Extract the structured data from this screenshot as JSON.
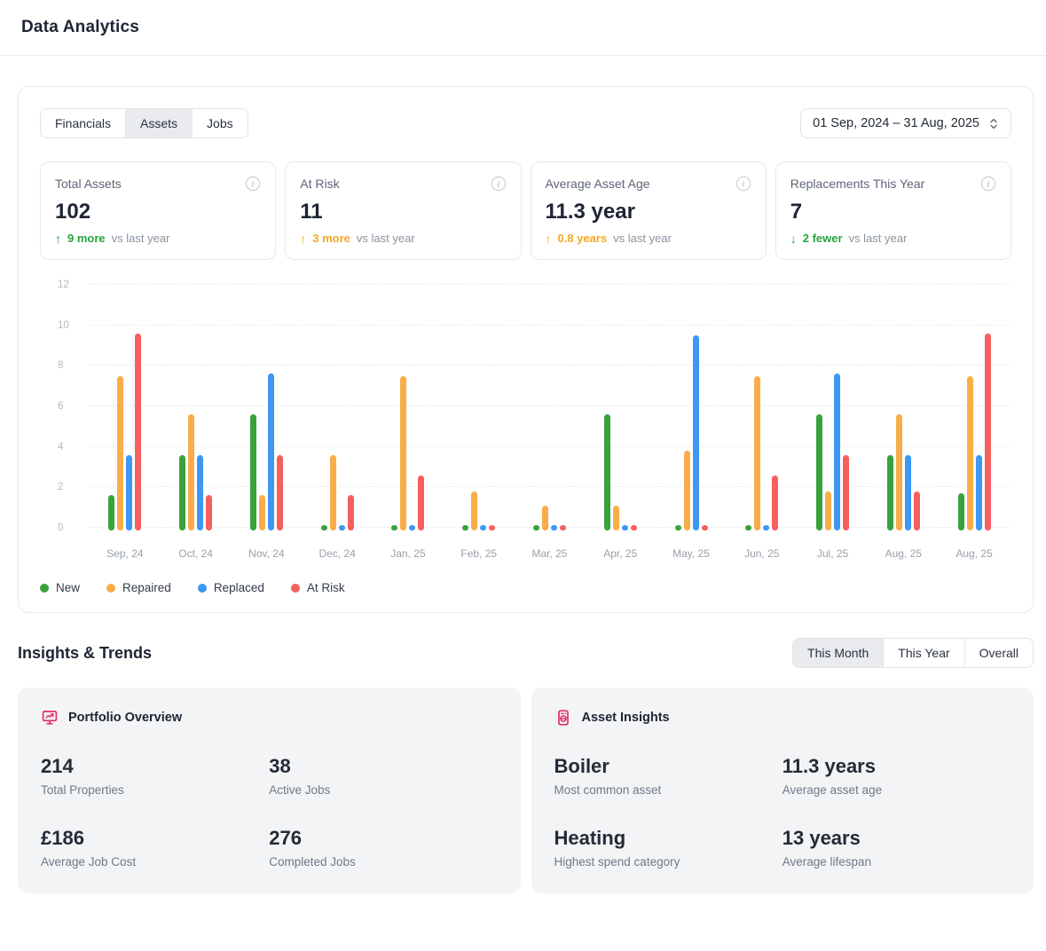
{
  "header": {
    "title": "Data Analytics"
  },
  "analytics_panel": {
    "tabs": [
      {
        "label": "Financials",
        "active": false
      },
      {
        "label": "Assets",
        "active": true
      },
      {
        "label": "Jobs",
        "active": false
      }
    ],
    "date_range": "01 Sep, 2024 – 31 Aug, 2025",
    "kpis": [
      {
        "title": "Total Assets",
        "value": "102",
        "delta_direction": "up",
        "delta_value": "9 more",
        "delta_suffix": "vs last year",
        "delta_color": "#23a43d"
      },
      {
        "title": "At Risk",
        "value": "11",
        "delta_direction": "up",
        "delta_value": "3 more",
        "delta_suffix": "vs last year",
        "delta_color": "#f6a723"
      },
      {
        "title": "Average Asset Age",
        "value": "11.3 year",
        "delta_direction": "up",
        "delta_value": "0.8 years",
        "delta_suffix": "vs last year",
        "delta_color": "#f6a723"
      },
      {
        "title": "Replacements This Year",
        "value": "7",
        "delta_direction": "down",
        "delta_value": "2 fewer",
        "delta_suffix": "vs last year",
        "delta_color": "#23a43d"
      }
    ]
  },
  "chart_data": {
    "type": "bar",
    "title": "",
    "categories": [
      "Sep, 24",
      "Oct, 24",
      "Nov, 24",
      "Dec, 24",
      "Jan, 25",
      "Feb, 25",
      "Mar, 25",
      "Apr, 25",
      "May, 25",
      "Jun, 25",
      "Jul, 25",
      "Aug, 25",
      "Aug, 25"
    ],
    "series": [
      {
        "name": "New",
        "color": "#39a23c",
        "values": [
          1.6,
          3.6,
          5.6,
          0.15,
          0.15,
          0.15,
          0.15,
          5.6,
          0.15,
          0.15,
          5.6,
          3.6,
          1.7
        ]
      },
      {
        "name": "Repaired",
        "color": "#f9ad4a",
        "values": [
          7.5,
          5.6,
          1.6,
          3.6,
          7.5,
          1.8,
          1.1,
          1.1,
          3.8,
          7.5,
          1.8,
          5.6,
          7.5
        ]
      },
      {
        "name": "Replaced",
        "color": "#3d97f5",
        "values": [
          3.6,
          3.6,
          7.6,
          0.15,
          0.15,
          0.15,
          0.15,
          0.15,
          9.5,
          0.15,
          7.6,
          3.6,
          3.6
        ]
      },
      {
        "name": "At Risk",
        "color": "#f5605e",
        "values": [
          9.6,
          1.6,
          3.6,
          1.6,
          2.6,
          0.15,
          0.15,
          0.15,
          0.15,
          2.6,
          3.6,
          1.8,
          9.6
        ]
      }
    ],
    "xlabel": "",
    "ylabel": "",
    "ylim": [
      0,
      12
    ],
    "yticks": [
      0,
      2,
      4,
      6,
      8,
      10,
      12
    ],
    "grid": "horizontal-dashed",
    "legend_position": "bottom-left"
  },
  "insights": {
    "title": "Insights & Trends",
    "tabs": [
      {
        "label": "This Month",
        "active": true
      },
      {
        "label": "This Year",
        "active": false
      },
      {
        "label": "Overall",
        "active": false
      }
    ],
    "cards": [
      {
        "icon": "presentation-chart-icon",
        "title": "Portfolio Overview",
        "stats": [
          {
            "value": "214",
            "label": "Total Properties"
          },
          {
            "value": "38",
            "label": "Active Jobs"
          },
          {
            "value": "£186",
            "label": "Average Job Cost"
          },
          {
            "value": "276",
            "label": "Completed Jobs"
          }
        ]
      },
      {
        "icon": "boiler-icon",
        "title": "Asset Insights",
        "stats": [
          {
            "value": "Boiler",
            "label": "Most common asset"
          },
          {
            "value": "11.3 years",
            "label": "Average asset age"
          },
          {
            "value": "Heating",
            "label": "Highest spend category"
          },
          {
            "value": "13 years",
            "label": "Average lifespan"
          }
        ]
      }
    ]
  },
  "colors": {
    "accent_pink": "#e52e63",
    "positive_green": "#23a43d",
    "warning_orange": "#f6a723",
    "card_bg": "#f3f4f6",
    "border": "#e7e9ec"
  }
}
